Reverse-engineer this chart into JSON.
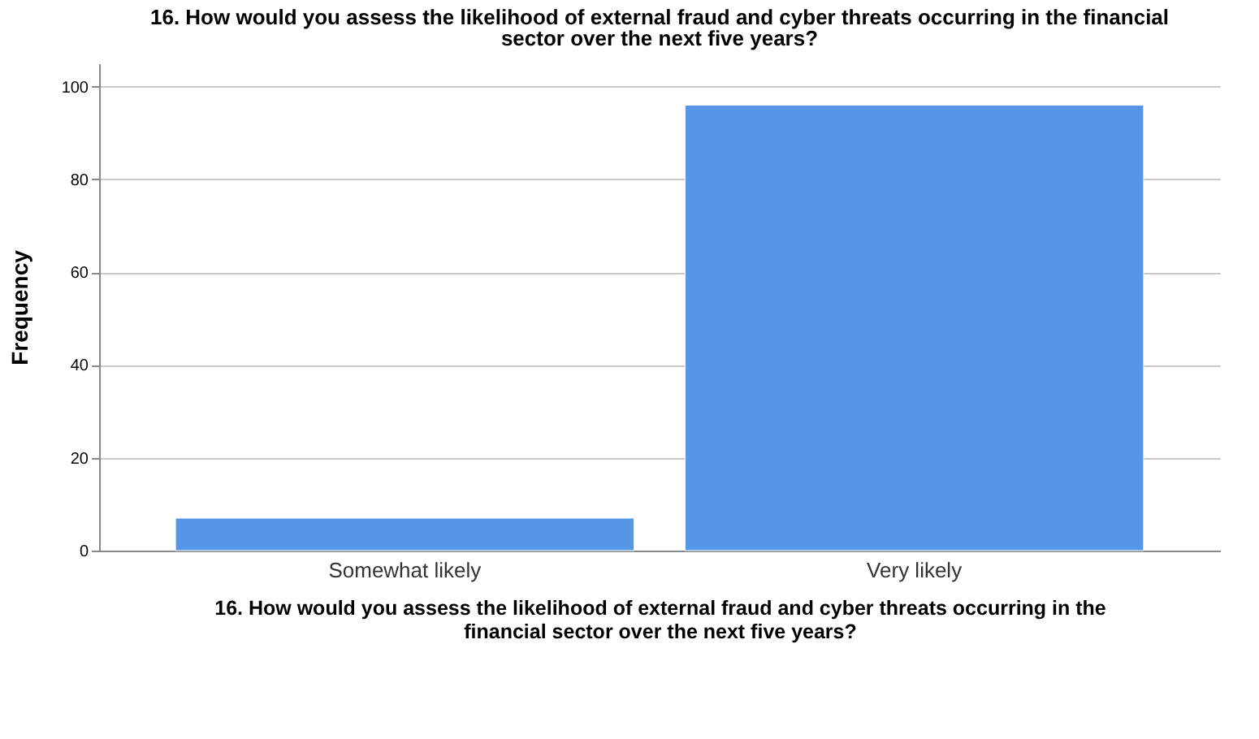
{
  "chart_data": {
    "type": "bar",
    "title": "16. How would you assess the likelihood of external fraud and cyber threats occurring in the financial sector over the next five years?",
    "xlabel": "16. How would you assess the likelihood of external fraud and cyber threats occurring in the financial sector over the next five years?",
    "ylabel": "Frequency",
    "categories": [
      "Somewhat likely",
      "Very likely"
    ],
    "values": [
      7,
      96
    ],
    "color": "#5596e6",
    "ylim": [
      0,
      105
    ],
    "yticks": [
      0,
      20,
      40,
      60,
      80,
      100
    ],
    "grid": "y"
  }
}
